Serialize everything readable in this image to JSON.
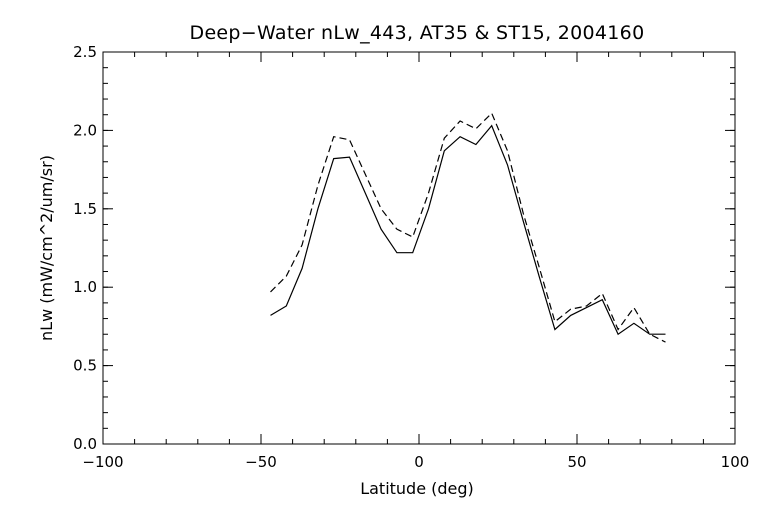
{
  "chart_data": {
    "type": "line",
    "title": "Deep−Water nLw_443, AT35 & ST15, 2004160",
    "xlabel": "Latitude (deg)",
    "ylabel": "nLw (mW/cm^2/um/sr)",
    "xlim": [
      -100,
      100
    ],
    "ylim": [
      0.0,
      2.5
    ],
    "xticks": [
      -100,
      -50,
      0,
      50,
      100
    ],
    "xtick_labels": [
      "−100",
      "−50",
      "0",
      "50",
      "100"
    ],
    "yticks": [
      0.0,
      0.5,
      1.0,
      1.5,
      2.0,
      2.5
    ],
    "ytick_labels": [
      "0.0",
      "0.5",
      "1.0",
      "1.5",
      "2.0",
      "2.5"
    ],
    "x_minor_step": 10,
    "y_minor_step": 0.1,
    "grid": false,
    "series": [
      {
        "style": "solid",
        "x": [
          -47,
          -42,
          -37,
          -32,
          -27,
          -22,
          -17,
          -12,
          -7,
          -2,
          3,
          8,
          13,
          18,
          23,
          28,
          33,
          38,
          43,
          48,
          53,
          58,
          63,
          68,
          73,
          78
        ],
        "y": [
          0.82,
          0.88,
          1.12,
          1.5,
          1.82,
          1.83,
          1.6,
          1.37,
          1.22,
          1.22,
          1.5,
          1.87,
          1.96,
          1.91,
          2.03,
          1.78,
          1.42,
          1.07,
          0.73,
          0.82,
          0.87,
          0.92,
          0.7,
          0.77,
          0.7,
          0.7
        ]
      },
      {
        "style": "dashed",
        "x": [
          -47,
          -42,
          -37,
          -32,
          -27,
          -22,
          -17,
          -12,
          -7,
          -2,
          3,
          8,
          13,
          18,
          23,
          28,
          33,
          38,
          43,
          48,
          53,
          58,
          63,
          68,
          73,
          78
        ],
        "y": [
          0.97,
          1.07,
          1.27,
          1.65,
          1.96,
          1.94,
          1.72,
          1.5,
          1.37,
          1.32,
          1.6,
          1.95,
          2.06,
          2.01,
          2.11,
          1.87,
          1.47,
          1.13,
          0.78,
          0.86,
          0.88,
          0.96,
          0.73,
          0.87,
          0.7,
          0.65
        ]
      }
    ]
  }
}
